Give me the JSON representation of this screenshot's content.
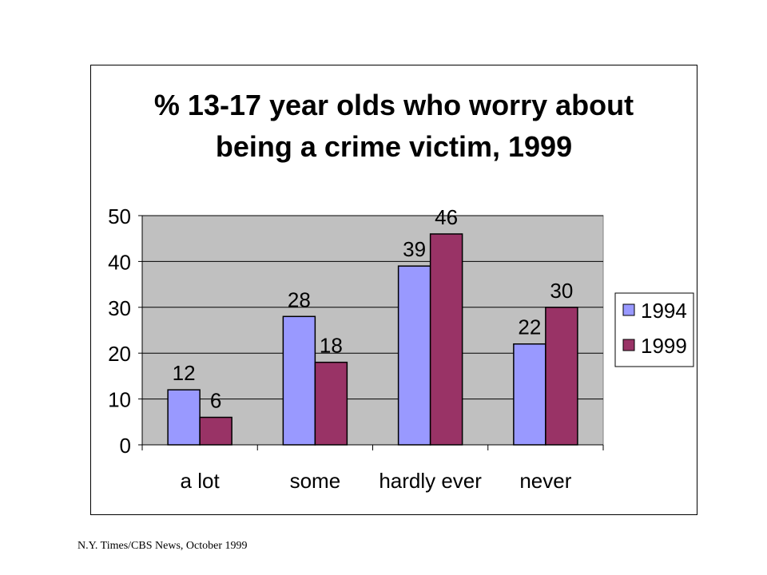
{
  "chart_data": {
    "type": "bar",
    "title_lines": [
      "% 13-17 year olds who worry about",
      "being a crime victim, 1999"
    ],
    "categories": [
      "a lot",
      "some",
      "hardly ever",
      "never"
    ],
    "series": [
      {
        "name": "1994",
        "values": [
          12,
          28,
          39,
          22
        ],
        "color": "#9999ff"
      },
      {
        "name": "1999",
        "values": [
          6,
          18,
          46,
          30
        ],
        "color": "#993366"
      }
    ],
    "ylim": [
      0,
      50
    ],
    "yticks": [
      0,
      10,
      20,
      30,
      40,
      50
    ],
    "grid": true,
    "plot_background": "#c0c0c0",
    "legend_position": "right"
  },
  "source": "N.Y. Times/CBS News, October 1999"
}
